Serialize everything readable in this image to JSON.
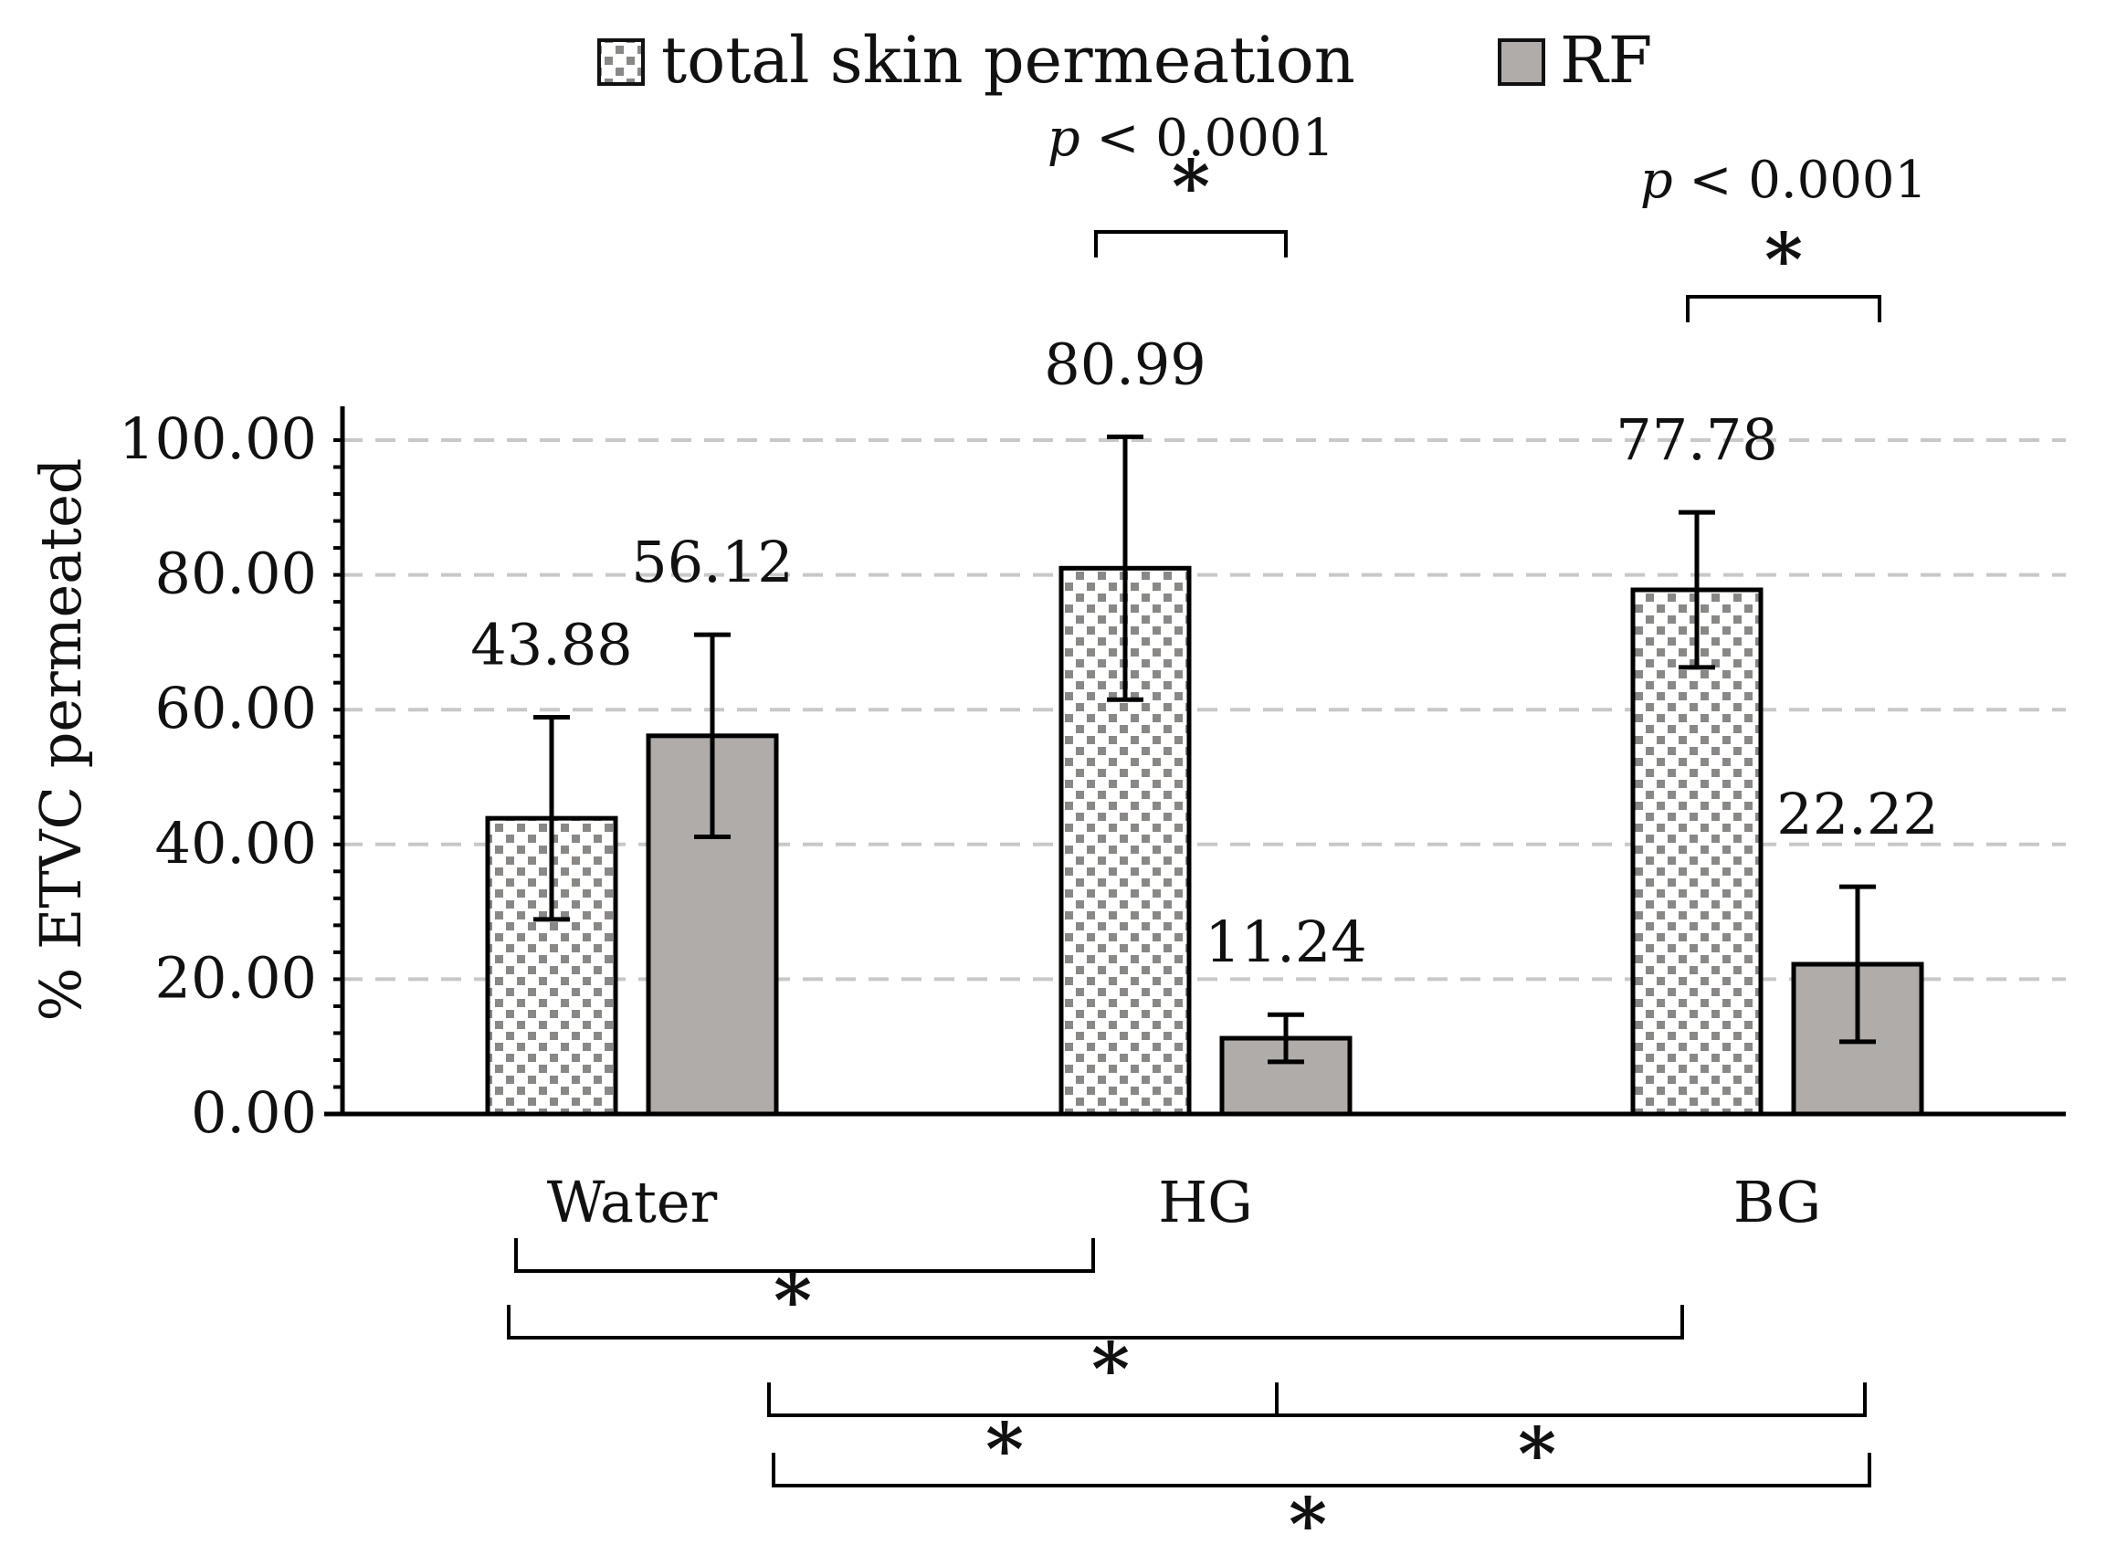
{
  "chart_data": {
    "type": "bar",
    "categories": [
      "Water",
      "HG",
      "BG"
    ],
    "series": [
      {
        "name": "total skin permeation",
        "values": [
          43.88,
          80.99,
          77.78
        ],
        "errors": [
          15,
          19.5,
          11.5
        ],
        "fill": "pattern-checker"
      },
      {
        "name": "RF",
        "values": [
          56.12,
          11.24,
          22.22
        ],
        "errors": [
          15,
          3.5,
          11.5
        ],
        "fill": "#b0acaa"
      }
    ],
    "value_labels": [
      [
        "43.88",
        "80.99",
        "77.78"
      ],
      [
        "56.12",
        "11.24",
        "22.22"
      ]
    ],
    "ylabel": "% ETVC permeated",
    "ylim": [
      0,
      100
    ],
    "yticks": [
      "0.00",
      "20.00",
      "40.00",
      "60.00",
      "80.00",
      "100.00"
    ],
    "grid": "dashed-horizontal",
    "legend_position": "top",
    "significance_top": [
      {
        "category": "HG",
        "p_prefix": "p",
        "p_rest": " < 0.0001",
        "star": "*"
      },
      {
        "category": "BG",
        "p_prefix": "p",
        "p_rest": " < 0.0001",
        "star": "*"
      }
    ],
    "significance_bottom_star": "*",
    "colors": {
      "rf_bar": "#b0acaa",
      "pattern_dot": "#8a8886",
      "grid": "#c8c8c8",
      "axis": "#000000"
    }
  }
}
